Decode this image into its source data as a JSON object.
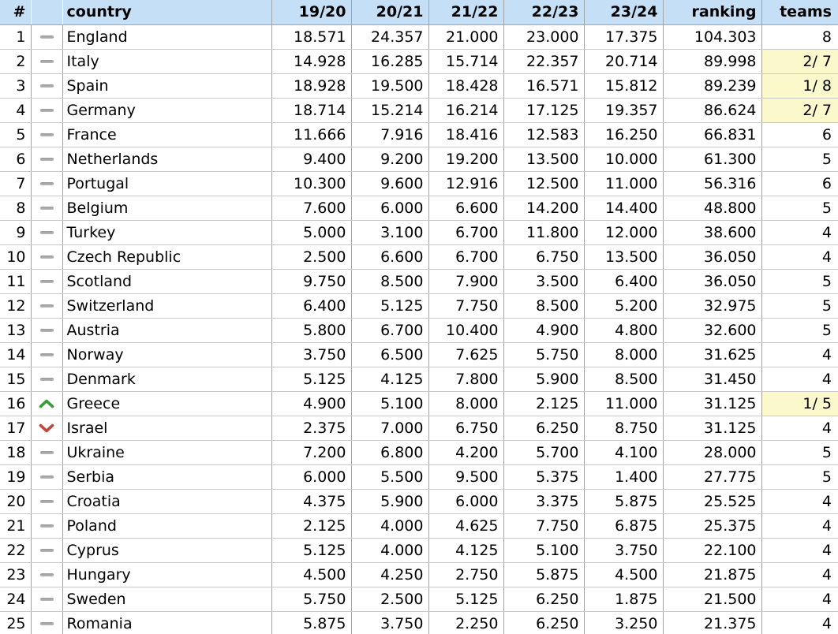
{
  "table": {
    "columns": [
      {
        "key": "rank",
        "label": "#",
        "align": "num"
      },
      {
        "key": "trend",
        "label": "",
        "align": "trend"
      },
      {
        "key": "country",
        "label": "country",
        "align": "country"
      },
      {
        "key": "s1920",
        "label": "19/20",
        "align": "num"
      },
      {
        "key": "s2021",
        "label": "20/21",
        "align": "num"
      },
      {
        "key": "s2122",
        "label": "21/22",
        "align": "num"
      },
      {
        "key": "s2223",
        "label": "22/23",
        "align": "num"
      },
      {
        "key": "s2324",
        "label": "23/24",
        "align": "num"
      },
      {
        "key": "ranking",
        "label": "ranking",
        "align": "num"
      },
      {
        "key": "teams",
        "label": "teams",
        "align": "num teams"
      }
    ],
    "rows": [
      {
        "rank": "1",
        "trend": "same",
        "country": "England",
        "seasons": [
          "18.571",
          "24.357",
          "21.000",
          "23.000",
          "17.375"
        ],
        "ranking": "104.303",
        "teams": "8",
        "teams_highlight": false
      },
      {
        "rank": "2",
        "trend": "same",
        "country": "Italy",
        "seasons": [
          "14.928",
          "16.285",
          "15.714",
          "22.357",
          "20.714"
        ],
        "ranking": "89.998",
        "teams": "2/ 7",
        "teams_highlight": true
      },
      {
        "rank": "3",
        "trend": "same",
        "country": "Spain",
        "seasons": [
          "18.928",
          "19.500",
          "18.428",
          "16.571",
          "15.812"
        ],
        "ranking": "89.239",
        "teams": "1/ 8",
        "teams_highlight": true
      },
      {
        "rank": "4",
        "trend": "same",
        "country": "Germany",
        "seasons": [
          "18.714",
          "15.214",
          "16.214",
          "17.125",
          "19.357"
        ],
        "ranking": "86.624",
        "teams": "2/ 7",
        "teams_highlight": true
      },
      {
        "rank": "5",
        "trend": "same",
        "country": "France",
        "seasons": [
          "11.666",
          "7.916",
          "18.416",
          "12.583",
          "16.250"
        ],
        "ranking": "66.831",
        "teams": "6",
        "teams_highlight": false
      },
      {
        "rank": "6",
        "trend": "same",
        "country": "Netherlands",
        "seasons": [
          "9.400",
          "9.200",
          "19.200",
          "13.500",
          "10.000"
        ],
        "ranking": "61.300",
        "teams": "5",
        "teams_highlight": false
      },
      {
        "rank": "7",
        "trend": "same",
        "country": "Portugal",
        "seasons": [
          "10.300",
          "9.600",
          "12.916",
          "12.500",
          "11.000"
        ],
        "ranking": "56.316",
        "teams": "6",
        "teams_highlight": false
      },
      {
        "rank": "8",
        "trend": "same",
        "country": "Belgium",
        "seasons": [
          "7.600",
          "6.000",
          "6.600",
          "14.200",
          "14.400"
        ],
        "ranking": "48.800",
        "teams": "5",
        "teams_highlight": false
      },
      {
        "rank": "9",
        "trend": "same",
        "country": "Turkey",
        "seasons": [
          "5.000",
          "3.100",
          "6.700",
          "11.800",
          "12.000"
        ],
        "ranking": "38.600",
        "teams": "4",
        "teams_highlight": false
      },
      {
        "rank": "10",
        "trend": "same",
        "country": "Czech Republic",
        "seasons": [
          "2.500",
          "6.600",
          "6.700",
          "6.750",
          "13.500"
        ],
        "ranking": "36.050",
        "teams": "4",
        "teams_highlight": false
      },
      {
        "rank": "11",
        "trend": "same",
        "country": "Scotland",
        "seasons": [
          "9.750",
          "8.500",
          "7.900",
          "3.500",
          "6.400"
        ],
        "ranking": "36.050",
        "teams": "5",
        "teams_highlight": false
      },
      {
        "rank": "12",
        "trend": "same",
        "country": "Switzerland",
        "seasons": [
          "6.400",
          "5.125",
          "7.750",
          "8.500",
          "5.200"
        ],
        "ranking": "32.975",
        "teams": "5",
        "teams_highlight": false
      },
      {
        "rank": "13",
        "trend": "same",
        "country": "Austria",
        "seasons": [
          "5.800",
          "6.700",
          "10.400",
          "4.900",
          "4.800"
        ],
        "ranking": "32.600",
        "teams": "5",
        "teams_highlight": false
      },
      {
        "rank": "14",
        "trend": "same",
        "country": "Norway",
        "seasons": [
          "3.750",
          "6.500",
          "7.625",
          "5.750",
          "8.000"
        ],
        "ranking": "31.625",
        "teams": "4",
        "teams_highlight": false
      },
      {
        "rank": "15",
        "trend": "same",
        "country": "Denmark",
        "seasons": [
          "5.125",
          "4.125",
          "7.800",
          "5.900",
          "8.500"
        ],
        "ranking": "31.450",
        "teams": "4",
        "teams_highlight": false
      },
      {
        "rank": "16",
        "trend": "up",
        "country": "Greece",
        "seasons": [
          "4.900",
          "5.100",
          "8.000",
          "2.125",
          "11.000"
        ],
        "ranking": "31.125",
        "teams": "1/ 5",
        "teams_highlight": true
      },
      {
        "rank": "17",
        "trend": "down",
        "country": "Israel",
        "seasons": [
          "2.375",
          "7.000",
          "6.750",
          "6.250",
          "8.750"
        ],
        "ranking": "31.125",
        "teams": "4",
        "teams_highlight": false
      },
      {
        "rank": "18",
        "trend": "same",
        "country": "Ukraine",
        "seasons": [
          "7.200",
          "6.800",
          "4.200",
          "5.700",
          "4.100"
        ],
        "ranking": "28.000",
        "teams": "5",
        "teams_highlight": false
      },
      {
        "rank": "19",
        "trend": "same",
        "country": "Serbia",
        "seasons": [
          "6.000",
          "5.500",
          "9.500",
          "5.375",
          "1.400"
        ],
        "ranking": "27.775",
        "teams": "5",
        "teams_highlight": false
      },
      {
        "rank": "20",
        "trend": "same",
        "country": "Croatia",
        "seasons": [
          "4.375",
          "5.900",
          "6.000",
          "3.375",
          "5.875"
        ],
        "ranking": "25.525",
        "teams": "4",
        "teams_highlight": false
      },
      {
        "rank": "21",
        "trend": "same",
        "country": "Poland",
        "seasons": [
          "2.125",
          "4.000",
          "4.625",
          "7.750",
          "6.875"
        ],
        "ranking": "25.375",
        "teams": "4",
        "teams_highlight": false
      },
      {
        "rank": "22",
        "trend": "same",
        "country": "Cyprus",
        "seasons": [
          "5.125",
          "4.000",
          "4.125",
          "5.100",
          "3.750"
        ],
        "ranking": "22.100",
        "teams": "4",
        "teams_highlight": false
      },
      {
        "rank": "23",
        "trend": "same",
        "country": "Hungary",
        "seasons": [
          "4.500",
          "4.250",
          "2.750",
          "5.875",
          "4.500"
        ],
        "ranking": "21.875",
        "teams": "4",
        "teams_highlight": false
      },
      {
        "rank": "24",
        "trend": "same",
        "country": "Sweden",
        "seasons": [
          "5.750",
          "2.500",
          "5.125",
          "6.250",
          "1.875"
        ],
        "ranking": "21.500",
        "teams": "4",
        "teams_highlight": false
      },
      {
        "rank": "25",
        "trend": "same",
        "country": "Romania",
        "seasons": [
          "5.875",
          "3.750",
          "2.250",
          "6.250",
          "3.250"
        ],
        "ranking": "21.375",
        "teams": "4",
        "teams_highlight": false
      }
    ]
  },
  "icons": {
    "same": "trend-same-icon",
    "up": "trend-up-icon",
    "down": "trend-down-icon"
  },
  "colors": {
    "header_bg": "#c5dff6",
    "highlight_bg": "#fbf8cc",
    "grid_vertical": "#a3a3a3",
    "grid_horizontal": "#c9c9c9",
    "trend_up": "#3a9b3a",
    "trend_down": "#c2473c",
    "trend_same": "#9a9a9a",
    "text": "#000000"
  }
}
